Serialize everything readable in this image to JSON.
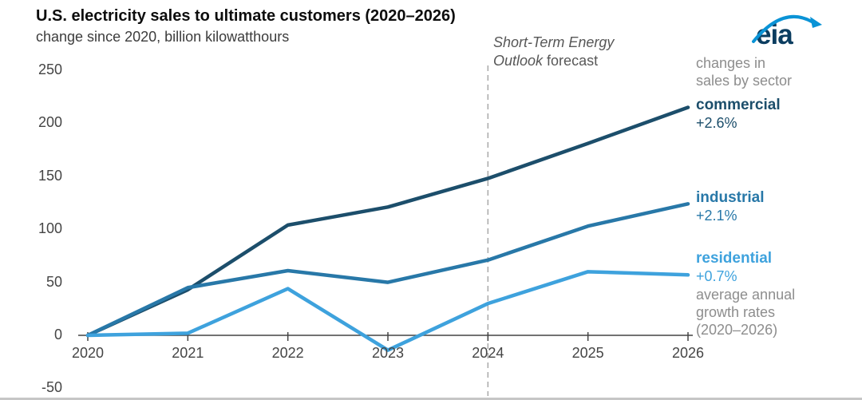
{
  "header": {
    "title": "U.S. electricity sales to ultimate customers (2020–2026)",
    "subtitle": "change since 2020, billion kilowatthours"
  },
  "annotation": {
    "line1": "Short-Term Energy",
    "line2_italic": "Outlook",
    "line2_regular": "forecast"
  },
  "logo": {
    "text": "eia",
    "brand_color": "#0b3d60",
    "swoosh_color": "#0a93d6"
  },
  "right_panel": {
    "top_note": [
      "changes in",
      "sales by sector"
    ],
    "bottom_note": [
      "average annual",
      "growth rates",
      "(2020–2026)"
    ]
  },
  "chart_data": {
    "type": "line",
    "title": "U.S. electricity sales to ultimate customers (2020–2026)",
    "ylabel": "change since 2020, billion kilowatthours",
    "x": [
      2020,
      2021,
      2022,
      2023,
      2024,
      2025,
      2026
    ],
    "y_ticks": [
      250,
      200,
      150,
      100,
      50,
      0,
      -50
    ],
    "ylim": [
      -50,
      250
    ],
    "grid": false,
    "legend_position": "right",
    "forecast_start_x": 2024,
    "forecast_label": "Short-Term Energy Outlook forecast",
    "axis_color": "#444444",
    "forecast_line_color": "#a9a9a9",
    "series": [
      {
        "name": "commercial",
        "growth_label": "+2.6%",
        "color": "#1c4e6b",
        "values": [
          0,
          43,
          104,
          121,
          148,
          181,
          215
        ]
      },
      {
        "name": "industrial",
        "growth_label": "+2.1%",
        "color": "#2878a8",
        "values": [
          0,
          45,
          61,
          50,
          71,
          103,
          124
        ]
      },
      {
        "name": "residential",
        "growth_label": "+0.7%",
        "color": "#3ea2dd",
        "values": [
          0,
          2,
          44,
          -14,
          30,
          60,
          57
        ]
      }
    ]
  }
}
